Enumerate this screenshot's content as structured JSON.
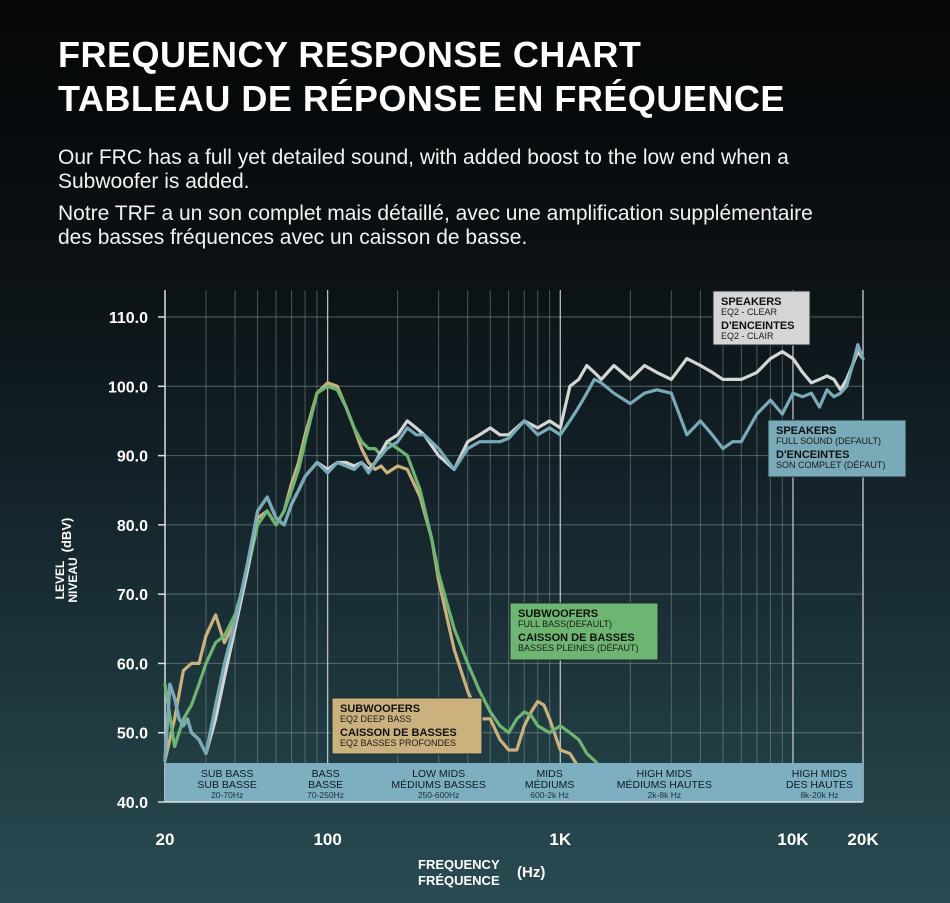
{
  "header": {
    "title_en": "FREQUENCY RESPONSE CHART",
    "title_fr": "TABLEAU DE RÉPONSE EN FRÉQUENCE",
    "desc_en": "Our FRC has a full yet detailed sound, with added boost to the low end when a Subwoofer is added.",
    "desc_fr": "Notre TRF a un son complet mais détaillé, avec une amplification supplémentaire des basses fréquences avec un caisson de basse."
  },
  "colors": {
    "white_series": "#d4d6d6",
    "blue_series": "#79aab8",
    "green_series": "#6db571",
    "tan_series": "#cbb17e",
    "band_strip": "#7dafc0"
  },
  "chart_data": {
    "type": "line",
    "title": "FREQUENCY RESPONSE CHART",
    "x_scale": "log",
    "xlim": [
      20,
      20000
    ],
    "ylim": [
      40,
      115
    ],
    "x_ticks": [
      {
        "value": 20,
        "label": "20"
      },
      {
        "value": 100,
        "label": "100"
      },
      {
        "value": 1000,
        "label": "1K"
      },
      {
        "value": 10000,
        "label": "10K"
      },
      {
        "value": 20000,
        "label": "20K"
      }
    ],
    "y_ticks": [
      {
        "value": 40,
        "label": "40.0"
      },
      {
        "value": 50,
        "label": "50.0"
      },
      {
        "value": 60,
        "label": "60.0"
      },
      {
        "value": 70,
        "label": "70.0"
      },
      {
        "value": 80,
        "label": "80.0"
      },
      {
        "value": 90,
        "label": "90.0"
      },
      {
        "value": 100,
        "label": "100.0"
      },
      {
        "value": 110,
        "label": "110.0"
      }
    ],
    "ylabel_line1": "LEVEL",
    "ylabel_line2": "NIVEAU",
    "ylabel_unit": "(dBV)",
    "xlabel_line1": "FREQUENCY",
    "xlabel_line2": "FRÉQUENCE",
    "xlabel_unit": "(Hz)",
    "bands": [
      {
        "l1": "SUB BASS",
        "l2": "SUB BASSE",
        "range": "20-70Hz",
        "center_hz": 37
      },
      {
        "l1": "BASS",
        "l2": "BASSE",
        "range": "70-250Hz",
        "center_hz": 98
      },
      {
        "l1": "LOW MIDS",
        "l2": "MÉDIUMS BASSES",
        "range": "250-600Hz",
        "center_hz": 300
      },
      {
        "l1": "MIDS",
        "l2": "MÉDIUMS",
        "range": "600-2k Hz",
        "center_hz": 900
      },
      {
        "l1": "HIGH MIDS",
        "l2": "MÉDIUMS HAUTES",
        "range": "2k-8k Hz",
        "center_hz": 2800
      },
      {
        "l1": "HIGH MIDS",
        "l2": "DES HAUTES",
        "range": "8k-20k Hz",
        "center_hz": 13000
      }
    ],
    "series": [
      {
        "name": "SPEAKERS EQ2 - CLEAR",
        "color": "#d4d6d6",
        "x": [
          20,
          21,
          22,
          23,
          24,
          25,
          26,
          28,
          30,
          33,
          36,
          40,
          45,
          50,
          55,
          60,
          65,
          70,
          75,
          80,
          90,
          100,
          110,
          120,
          130,
          140,
          150,
          160,
          180,
          200,
          220,
          240,
          260,
          300,
          350,
          400,
          450,
          500,
          550,
          600,
          700,
          800,
          900,
          1000,
          1100,
          1200,
          1300,
          1400,
          1500,
          1700,
          2000,
          2300,
          2600,
          3000,
          3500,
          4000,
          4500,
          5000,
          6000,
          7000,
          8000,
          9000,
          10000,
          11000,
          12000,
          13000,
          14000,
          15000,
          16000,
          17000,
          18000,
          19000,
          20000
        ],
        "y": [
          46,
          57,
          55,
          52,
          51,
          52,
          50,
          49,
          47,
          52,
          58,
          65,
          73,
          82,
          84,
          81,
          80,
          83,
          85,
          87,
          89,
          88,
          89,
          89,
          88.5,
          89,
          88,
          89,
          92,
          93,
          95,
          94,
          93,
          90,
          88,
          92,
          93,
          94,
          93,
          93,
          95,
          94,
          95,
          94,
          100,
          101,
          103,
          102,
          101,
          103,
          101,
          103,
          102,
          101,
          104,
          103,
          102,
          101,
          101,
          102,
          104,
          105,
          104,
          102,
          100.5,
          101,
          101.5,
          101,
          99.5,
          101,
          103,
          105,
          104
        ]
      },
      {
        "name": "SPEAKERS FULL SOUND (DEFAULT)",
        "color": "#79aab8",
        "x": [
          20,
          21,
          22,
          23,
          24,
          25,
          26,
          28,
          30,
          33,
          36,
          40,
          45,
          50,
          55,
          60,
          65,
          70,
          75,
          80,
          90,
          100,
          110,
          120,
          130,
          140,
          150,
          160,
          180,
          200,
          220,
          240,
          260,
          300,
          350,
          400,
          450,
          500,
          550,
          600,
          700,
          800,
          900,
          1000,
          1100,
          1200,
          1300,
          1400,
          1500,
          1700,
          2000,
          2300,
          2600,
          3000,
          3500,
          4000,
          4500,
          5000,
          5500,
          6000,
          7000,
          8000,
          9000,
          10000,
          11000,
          12000,
          13000,
          14000,
          15000,
          16000,
          17000,
          18000,
          19000,
          20000
        ],
        "y": [
          46,
          57,
          55,
          52,
          51,
          52,
          50,
          49,
          47,
          54,
          60,
          66,
          74,
          82,
          84,
          81,
          80,
          83,
          85,
          87,
          89,
          87.5,
          89,
          88.5,
          88,
          89,
          87.5,
          89,
          91,
          92,
          94,
          93,
          93,
          91,
          88,
          91,
          92,
          92,
          92,
          92.5,
          95,
          93,
          94,
          93,
          95,
          97,
          99,
          101,
          100.5,
          99,
          97.5,
          99,
          99.5,
          99,
          93,
          95,
          93,
          91,
          92,
          92,
          96,
          98,
          96,
          99,
          98.5,
          99,
          97,
          99.5,
          98.5,
          99,
          100,
          103,
          106,
          104
        ]
      },
      {
        "name": "SUBWOOFERS FULL BASS (DEFAULT)",
        "color": "#6db571",
        "x": [
          20,
          22,
          24,
          26,
          28,
          30,
          33,
          36,
          40,
          45,
          50,
          55,
          60,
          65,
          70,
          75,
          80,
          90,
          100,
          110,
          120,
          130,
          140,
          150,
          160,
          170,
          180,
          200,
          220,
          250,
          280,
          300,
          350,
          400,
          450,
          500,
          550,
          600,
          650,
          700,
          750,
          800,
          900,
          1000,
          1100,
          1200,
          1300,
          1400,
          1500
        ],
        "y": [
          57,
          48,
          52,
          54,
          57,
          60,
          63,
          64,
          67,
          73,
          80,
          82,
          80,
          82,
          85,
          88,
          92,
          99,
          100,
          99.5,
          97,
          94,
          92,
          91,
          91,
          90,
          92,
          91,
          90,
          85,
          78,
          73,
          65,
          60,
          56,
          53,
          51,
          50,
          52,
          53,
          52.5,
          51,
          50,
          51,
          50,
          49,
          47,
          46,
          45
        ]
      },
      {
        "name": "SUBWOOFERS EQ2 DEEP BASS",
        "color": "#cbb17e",
        "x": [
          20,
          22,
          24,
          26,
          28,
          30,
          33,
          36,
          40,
          45,
          50,
          55,
          60,
          65,
          70,
          75,
          80,
          90,
          100,
          110,
          120,
          130,
          140,
          150,
          160,
          170,
          180,
          200,
          220,
          250,
          280,
          300,
          350,
          400,
          450,
          500,
          550,
          600,
          650,
          700,
          750,
          800,
          850,
          900,
          1000,
          1100,
          1200
        ],
        "y": [
          46,
          52,
          59,
          60,
          60,
          64,
          67,
          63,
          66,
          74,
          81,
          82,
          80,
          82,
          86,
          89,
          93,
          99,
          100.5,
          100,
          97,
          94,
          91,
          89,
          88,
          88.5,
          87.5,
          88.5,
          88,
          84,
          78,
          72,
          62,
          56,
          52,
          52,
          49,
          47.5,
          47.5,
          51,
          53,
          54.5,
          54,
          52,
          47.5,
          47,
          45
        ]
      }
    ],
    "legend": [
      {
        "id": "white",
        "title1": "SPEAKERS",
        "sub1": "EQ2 - CLEAR",
        "title2": "D'ENCEINTES",
        "sub2": "EQ2 - CLAIR",
        "bg": "#d4d6d6"
      },
      {
        "id": "blue",
        "title1": "SPEAKERS",
        "sub1": "FULL SOUND (DEFAULT)",
        "title2": "D'ENCEINTES",
        "sub2": "SON COMPLET (DÉFAUT)",
        "bg": "#79aab8"
      },
      {
        "id": "green",
        "title1": "SUBWOOFERS",
        "sub1": "FULL BASS(DEFAULT)",
        "title2": "CAISSON DE BASSES",
        "sub2": "BASSES PLEINES (DÉFAUT)",
        "bg": "#6db571"
      },
      {
        "id": "tan",
        "title1": "SUBWOOFERS",
        "sub1": "EQ2 DEEP BASS",
        "title2": "CAISSON DE BASSES",
        "sub2": "EQ2 BASSES PROFONDES",
        "bg": "#cbb17e"
      }
    ]
  }
}
